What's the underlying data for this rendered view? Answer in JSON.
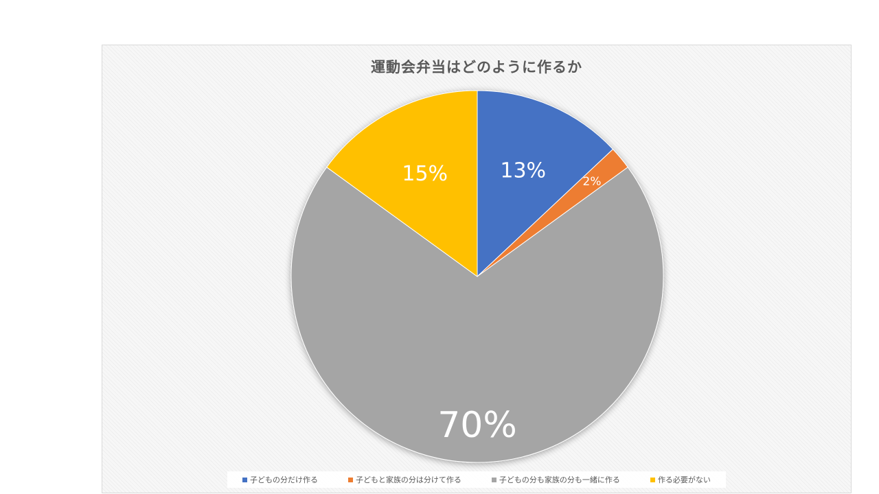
{
  "chart_data": {
    "type": "pie",
    "title": "運動会弁当はどのように作るか",
    "categories": [
      "子どもの分だけ作る",
      "子どもと家族の分は分けて作る",
      "子どもの分も家族の分も一緒に作る",
      "作る必要がない"
    ],
    "values": [
      13,
      2,
      70,
      15
    ],
    "labels": [
      "13%",
      "2%",
      "70%",
      "15%"
    ],
    "colors": [
      "#4472c4",
      "#ed7d31",
      "#a5a5a5",
      "#ffc000"
    ],
    "legend": "bottom"
  }
}
